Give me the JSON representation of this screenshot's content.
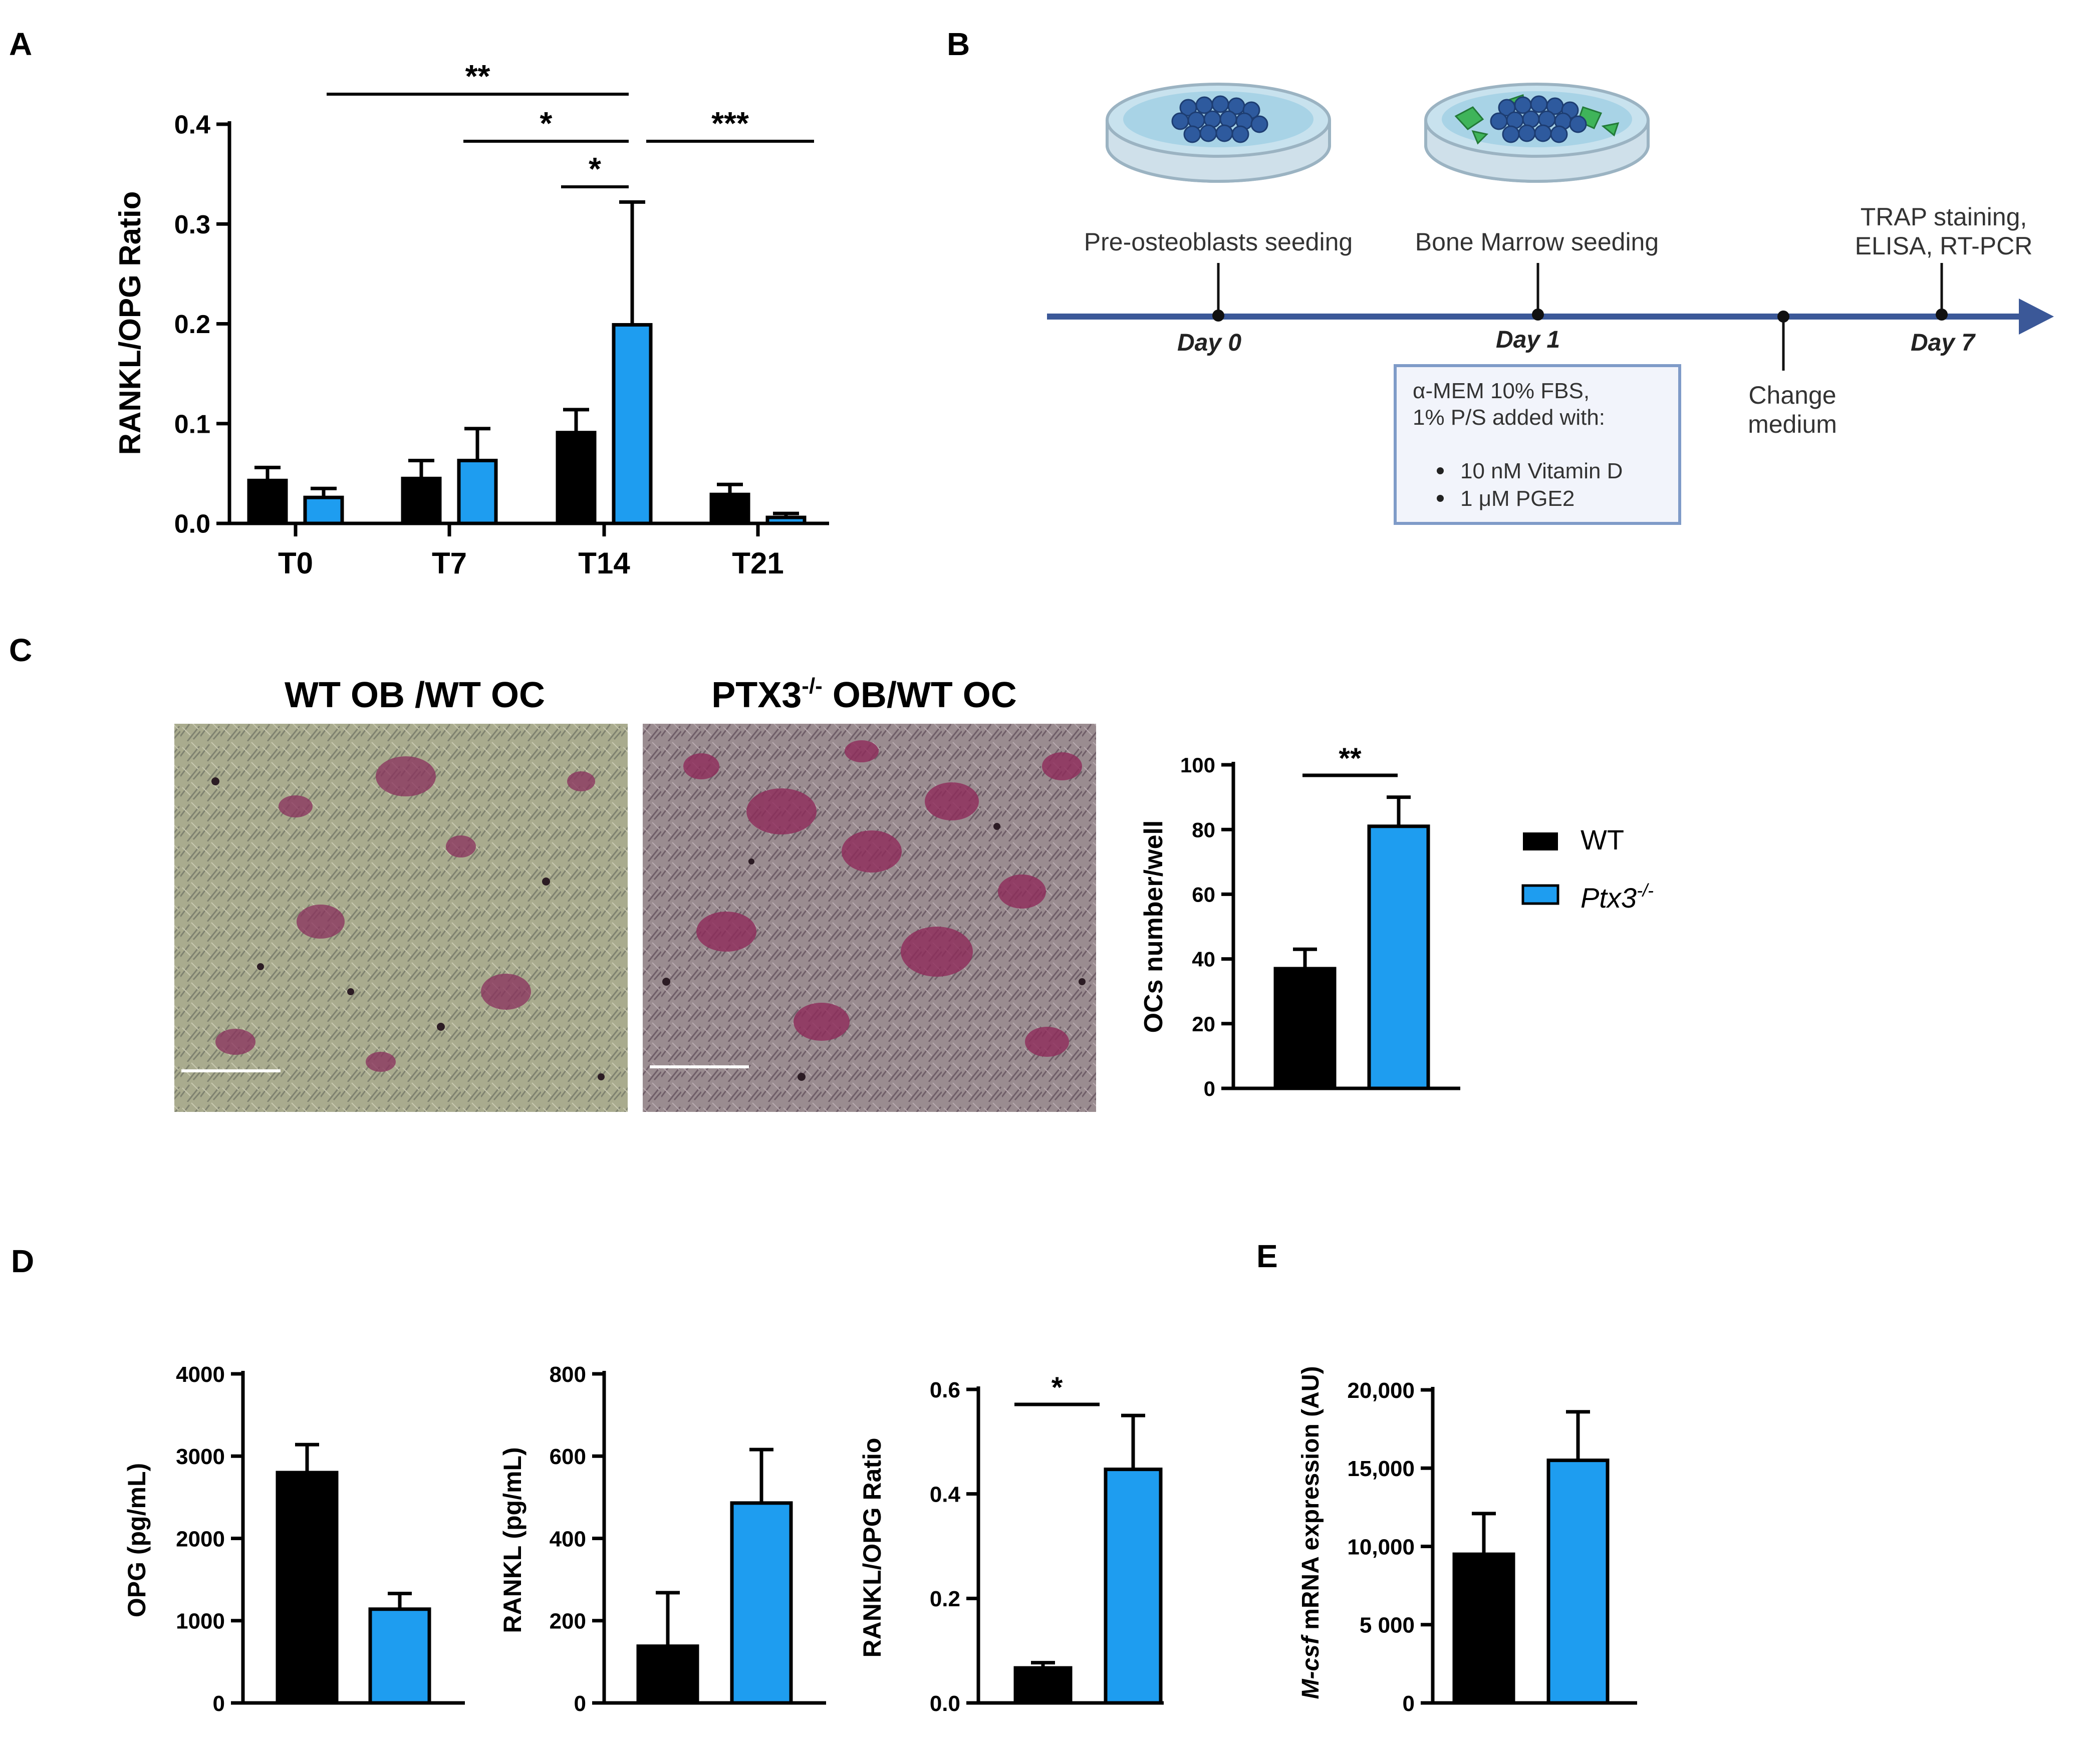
{
  "colors": {
    "wt": "#000000",
    "ko": "#1e9df0",
    "timeline": "#3b5898",
    "box_border": "#7f9bc8",
    "box_fill": "#f2f4fb"
  },
  "panel_labels": [
    "A",
    "B",
    "C",
    "D",
    "E"
  ],
  "legend": {
    "items": [
      {
        "label": "WT",
        "color": "#000000"
      },
      {
        "label": "Ptx3",
        "sup": "-/-",
        "color": "#1e9df0"
      }
    ]
  },
  "timeline": {
    "events": [
      {
        "label": "Pre-osteoblasts seeding",
        "day": "Day 0"
      },
      {
        "label": "Bone Marrow seeding",
        "day": "Day 1"
      },
      {
        "label": "Change",
        "label2": "medium"
      },
      {
        "label": "TRAP staining,",
        "label2": "ELISA, RT-PCR",
        "day": "Day 7"
      }
    ],
    "box": {
      "line1": "α-MEM 10% FBS,",
      "line2": "1% P/S added with:",
      "bullets": [
        "10 nM Vitamin D",
        "1 μM PGE2"
      ]
    },
    "dish_icons": [
      "petri-dish-preosteoblasts",
      "petri-dish-bone-marrow"
    ]
  },
  "micrographs": {
    "titles": [
      {
        "text": "WT OB /WT OC"
      },
      {
        "text": "PTX3",
        "sup": "-/-",
        "rest": " OB/WT OC"
      }
    ]
  },
  "chart_data": [
    {
      "id": "A",
      "type": "bar",
      "ylabel": "RANKL/OPG Ratio",
      "xlabel": "",
      "categories": [
        "T0",
        "T7",
        "T14",
        "T21"
      ],
      "series": [
        {
          "name": "WT",
          "values": [
            0.043,
            0.045,
            0.091,
            0.029
          ],
          "errors": [
            0.013,
            0.018,
            0.023,
            0.01
          ]
        },
        {
          "name": "Ptx3-/-",
          "values": [
            0.026,
            0.063,
            0.199,
            0.006
          ],
          "errors": [
            0.009,
            0.032,
            0.123,
            0.004
          ]
        }
      ],
      "ylim": [
        0,
        0.4
      ],
      "yticks": [
        "0.0",
        "0.1",
        "0.2",
        "0.3",
        "0.4"
      ],
      "significance": [
        "**",
        "*",
        "*",
        "***"
      ],
      "legend": "right",
      "grid": false
    },
    {
      "id": "C",
      "type": "bar",
      "ylabel": "OCs number/well",
      "xlabel": "",
      "categories": [
        "WT",
        "Ptx3-/-"
      ],
      "values": [
        37,
        81
      ],
      "errors": [
        6,
        9
      ],
      "ylim": [
        0,
        100
      ],
      "yticks": [
        "0",
        "20",
        "40",
        "60",
        "80",
        "100"
      ],
      "significance": [
        "**"
      ],
      "grid": false
    },
    {
      "id": "D1",
      "type": "bar",
      "ylabel": "OPG (pg/mL)",
      "xlabel": "",
      "categories": [
        "WT",
        "Ptx3-/-"
      ],
      "values": [
        2800,
        1140
      ],
      "errors": [
        340,
        190
      ],
      "ylim": [
        0,
        4000
      ],
      "yticks": [
        "0",
        "1000",
        "2000",
        "3000",
        "4000"
      ],
      "significance": [],
      "grid": false
    },
    {
      "id": "D2",
      "type": "bar",
      "ylabel": "RANKL (pg/mL)",
      "xlabel": "",
      "categories": [
        "WT",
        "Ptx3-/-"
      ],
      "values": [
        138,
        486
      ],
      "errors": [
        130,
        130
      ],
      "ylim": [
        0,
        800
      ],
      "yticks": [
        "0",
        "200",
        "400",
        "600",
        "800"
      ],
      "significance": [],
      "grid": false
    },
    {
      "id": "D3",
      "type": "bar",
      "ylabel": "RANKL/OPG Ratio",
      "xlabel": "",
      "categories": [
        "WT",
        "Ptx3-/-"
      ],
      "values": [
        0.067,
        0.447
      ],
      "errors": [
        0.01,
        0.103
      ],
      "ylim": [
        0,
        0.6
      ],
      "yticks": [
        "0.0",
        "0.2",
        "0.4",
        "0.6"
      ],
      "significance": [
        "*"
      ],
      "grid": false
    },
    {
      "id": "E",
      "type": "bar",
      "ylabel": "M-csf mRNA expression (AU)",
      "xlabel": "",
      "categories": [
        "WT",
        "Ptx3-/-"
      ],
      "values": [
        9500,
        15500
      ],
      "errors": [
        2600,
        3100
      ],
      "ylim": [
        0,
        20000
      ],
      "yticks": [
        "0",
        "5 000",
        "10,000",
        "15,000",
        "20,000"
      ],
      "significance": [],
      "grid": false
    }
  ]
}
